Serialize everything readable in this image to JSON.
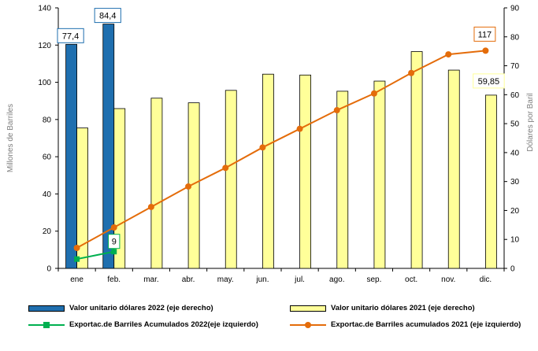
{
  "chart_data": {
    "type": "bar+line",
    "title": "",
    "categories": [
      "ene",
      "feb.",
      "mar.",
      "abr.",
      "may.",
      "jun.",
      "jul.",
      "ago.",
      "sep.",
      "oct.",
      "nov.",
      "dic."
    ],
    "y_left": {
      "label": "Millones de Barriles",
      "min": 0,
      "max": 140,
      "ticks": [
        0,
        20,
        40,
        60,
        80,
        100,
        120,
        140
      ]
    },
    "y_right": {
      "label": "Dólares por Baril",
      "min": 0,
      "max": 90,
      "ticks": [
        0,
        10,
        20,
        30,
        40,
        50,
        60,
        70,
        80,
        90
      ]
    },
    "series": [
      {
        "name": "Valor unitario dólares 2022 (eje derecho)",
        "type": "bar",
        "axis": "right",
        "color": "#1f6faf",
        "values": [
          77.4,
          84.4,
          null,
          null,
          null,
          null,
          null,
          null,
          null,
          null,
          null,
          null
        ]
      },
      {
        "name": "Valor unitario dólares 2021 (eje derecho)",
        "type": "bar",
        "axis": "right",
        "color": "#ffff99",
        "values": [
          48.5,
          55.2,
          58.8,
          57.2,
          61.5,
          67.1,
          66.8,
          61.2,
          64.7,
          74.9,
          68.5,
          59.85
        ]
      },
      {
        "name": "Exportac.de Barriles Acumulados 2022(eje izquierdo)",
        "type": "line",
        "axis": "left",
        "color": "#00b050",
        "values": [
          5,
          9,
          null,
          null,
          null,
          null,
          null,
          null,
          null,
          null,
          null,
          null
        ]
      },
      {
        "name": "Exportac.de Barriles acumulados 2021 (eje izquierdo)",
        "type": "line",
        "axis": "left",
        "color": "#e46c0a",
        "values": [
          11,
          22,
          33,
          44,
          54,
          65,
          75,
          85,
          94,
          105,
          115,
          117
        ]
      }
    ],
    "data_labels": [
      {
        "text": "77,4",
        "series": 0,
        "index": 0,
        "border": "#1f6faf"
      },
      {
        "text": "84,4",
        "series": 0,
        "index": 1,
        "border": "#1f6faf"
      },
      {
        "text": "9",
        "series": 2,
        "index": 1,
        "border": "#00b050"
      },
      {
        "text": "117",
        "series": 3,
        "index": 11,
        "border": "#e46c0a"
      },
      {
        "text": "59,85",
        "series": 1,
        "index": 11,
        "border": "#ffff99"
      }
    ],
    "grid": false,
    "legend": "bottom"
  }
}
